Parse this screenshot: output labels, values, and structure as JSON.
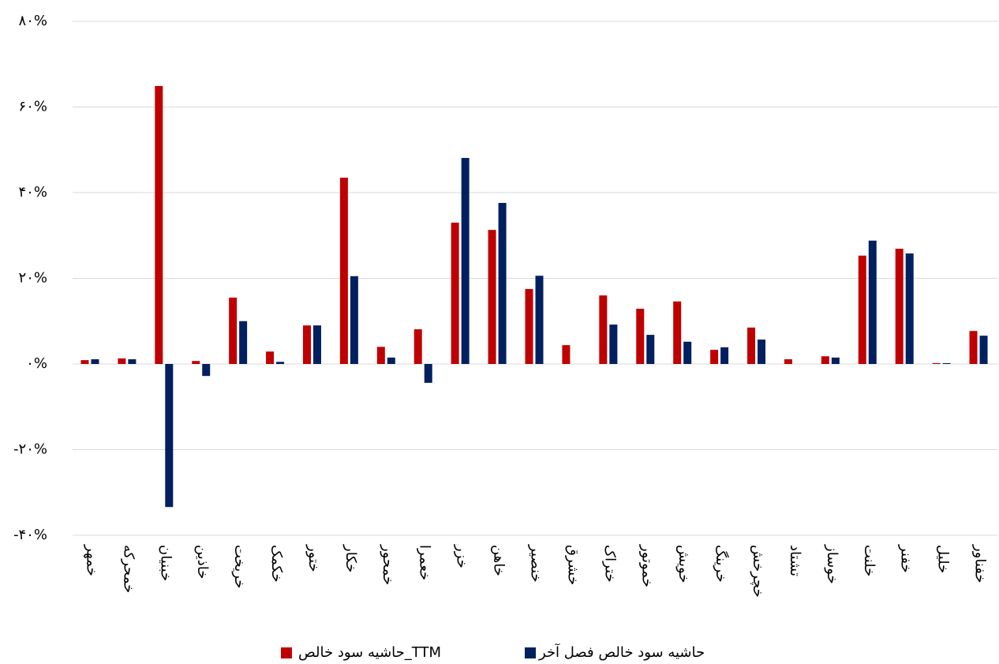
{
  "chart_data": {
    "type": "bar",
    "categories": [
      "خمهر",
      "خمحرکه",
      "خبنیان",
      "خاذین",
      "خریخت",
      "خکمک",
      "ختور",
      "خکار",
      "خمحور",
      "خعمرا",
      "خزر",
      "خاهن",
      "خنصیر",
      "خشرق",
      "ختراک",
      "خموتور",
      "خویش",
      "خرینگ",
      "خچرخش",
      "تشتاد",
      "خوساز",
      "خلنت",
      "خفنر",
      "خلیل",
      "خفناور"
    ],
    "series": [
      {
        "name": "حاشیه سود خالص_TTM",
        "color": "#c00000",
        "values": [
          0.9,
          1.3,
          64.9,
          0.7,
          15.5,
          2.9,
          9.0,
          43.5,
          4.0,
          8.1,
          33.0,
          31.3,
          17.5,
          4.4,
          16.0,
          12.9,
          14.6,
          3.3,
          8.5,
          1.1,
          1.8,
          25.3,
          26.9,
          0.2,
          7.7
        ]
      },
      {
        "name": "حاشیه سود خالص فصل آخر",
        "color": "#002060",
        "values": [
          1.1,
          1.1,
          -33.4,
          -2.8,
          10.0,
          0.5,
          9.0,
          20.5,
          1.5,
          -4.4,
          48.1,
          37.6,
          20.6,
          null,
          9.2,
          6.8,
          5.2,
          3.9,
          5.7,
          null,
          1.5,
          28.8,
          25.8,
          0.2,
          6.6
        ]
      }
    ],
    "ylim": [
      -40,
      80
    ],
    "yticks": [
      {
        "value": -40,
        "label": "-۴۰%"
      },
      {
        "value": -20,
        "label": "-۲۰%"
      },
      {
        "value": 0,
        "label": "۰%"
      },
      {
        "value": 20,
        "label": "۲۰%"
      },
      {
        "value": 40,
        "label": "۴۰%"
      },
      {
        "value": 60,
        "label": "۶۰%"
      },
      {
        "value": 80,
        "label": "۸۰%"
      }
    ],
    "grid": true,
    "legend": "bottom"
  }
}
